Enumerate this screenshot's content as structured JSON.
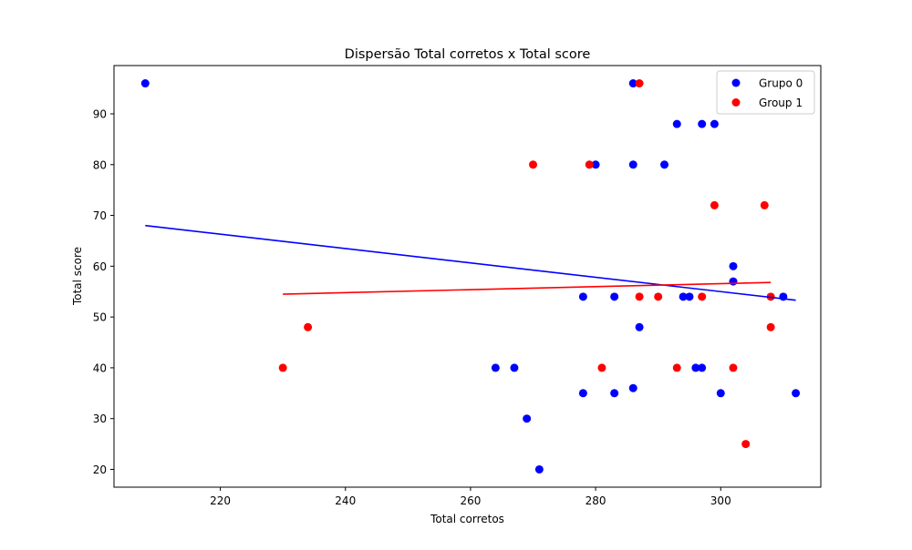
{
  "chart_data": {
    "type": "scatter",
    "title": "Dispersão Total corretos x Total score",
    "xlabel": "Total corretos",
    "ylabel": "Total score",
    "xlim": [
      203,
      316
    ],
    "ylim": [
      16.5,
      99.5
    ],
    "xticks": [
      220,
      240,
      260,
      280,
      300
    ],
    "yticks": [
      20,
      30,
      40,
      50,
      60,
      70,
      80,
      90
    ],
    "grid": false,
    "legend_position": "top-right",
    "series": [
      {
        "name": "Grupo 0",
        "color": "#0000ff",
        "points": [
          [
            208,
            96
          ],
          [
            286,
            96
          ],
          [
            293,
            88
          ],
          [
            297,
            88
          ],
          [
            299,
            88
          ],
          [
            280,
            80
          ],
          [
            286,
            80
          ],
          [
            291,
            80
          ],
          [
            302,
            60
          ],
          [
            302,
            57
          ],
          [
            278,
            54
          ],
          [
            283,
            54
          ],
          [
            294,
            54
          ],
          [
            295,
            54
          ],
          [
            310,
            54
          ],
          [
            287,
            48
          ],
          [
            264,
            40
          ],
          [
            267,
            40
          ],
          [
            296,
            40
          ],
          [
            297,
            40
          ],
          [
            278,
            35
          ],
          [
            283,
            35
          ],
          [
            300,
            35
          ],
          [
            312,
            35
          ],
          [
            286,
            36
          ],
          [
            269,
            30
          ],
          [
            271,
            20
          ]
        ],
        "trend": {
          "x": [
            208,
            312
          ],
          "y": [
            68,
            53.3
          ]
        }
      },
      {
        "name": "Group 1",
        "color": "#ff0000",
        "points": [
          [
            287,
            96
          ],
          [
            270,
            80
          ],
          [
            279,
            80
          ],
          [
            299,
            72
          ],
          [
            307,
            72
          ],
          [
            287,
            54
          ],
          [
            290,
            54
          ],
          [
            297,
            54
          ],
          [
            308,
            54
          ],
          [
            234,
            48
          ],
          [
            308,
            48
          ],
          [
            230,
            40
          ],
          [
            281,
            40
          ],
          [
            293,
            40
          ],
          [
            302,
            40
          ],
          [
            304,
            25
          ]
        ],
        "trend": {
          "x": [
            230,
            308
          ],
          "y": [
            54.5,
            56.8
          ]
        }
      }
    ]
  }
}
